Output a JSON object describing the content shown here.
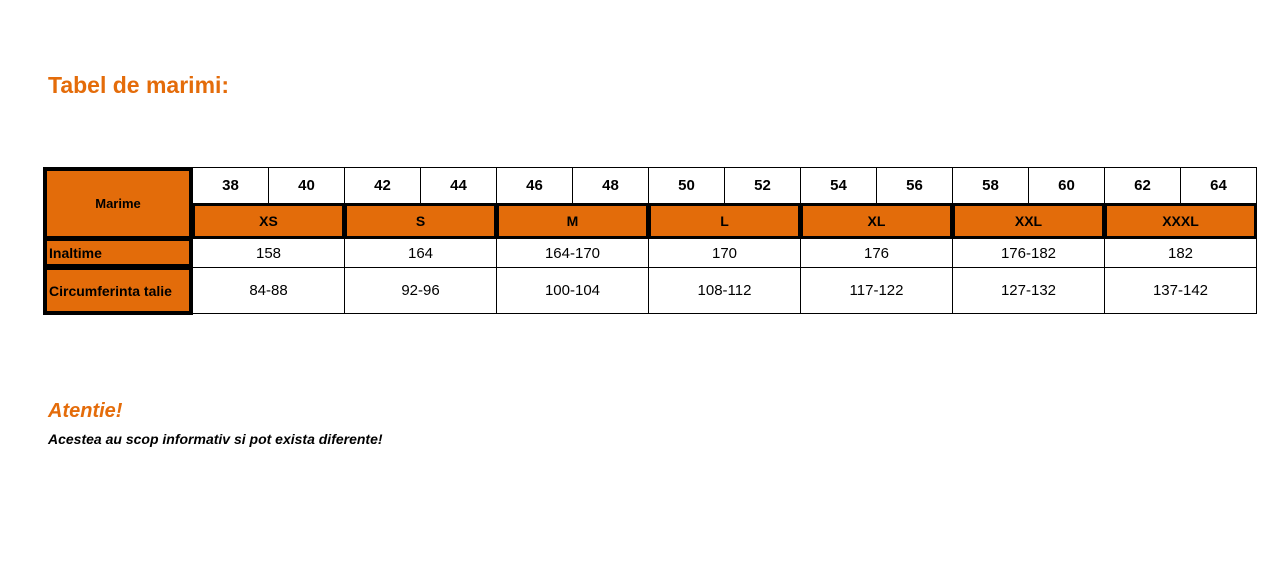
{
  "title": "Tabel de marimi:",
  "table": {
    "header_label": "Marime",
    "numeric_sizes": [
      "38",
      "40",
      "42",
      "44",
      "46",
      "48",
      "50",
      "52",
      "54",
      "56",
      "58",
      "60",
      "62",
      "64"
    ],
    "letter_sizes": [
      "XS",
      "S",
      "M",
      "L",
      "XL",
      "XXL",
      "XXXL"
    ],
    "rows": [
      {
        "label": "Inaltime",
        "values": [
          "158",
          "164",
          "164-170",
          "170",
          "176",
          "176-182",
          "182"
        ]
      },
      {
        "label": "Circumferinta talie",
        "values": [
          "84-88",
          "92-96",
          "100-104",
          "108-112",
          "117-122",
          "127-132",
          "137-142"
        ]
      }
    ]
  },
  "warning_title": "Atentie!",
  "warning_text": "Acestea au scop informativ si pot exista diferente!",
  "colors": {
    "accent": "#E36C0A",
    "title": "#E46C0A"
  }
}
